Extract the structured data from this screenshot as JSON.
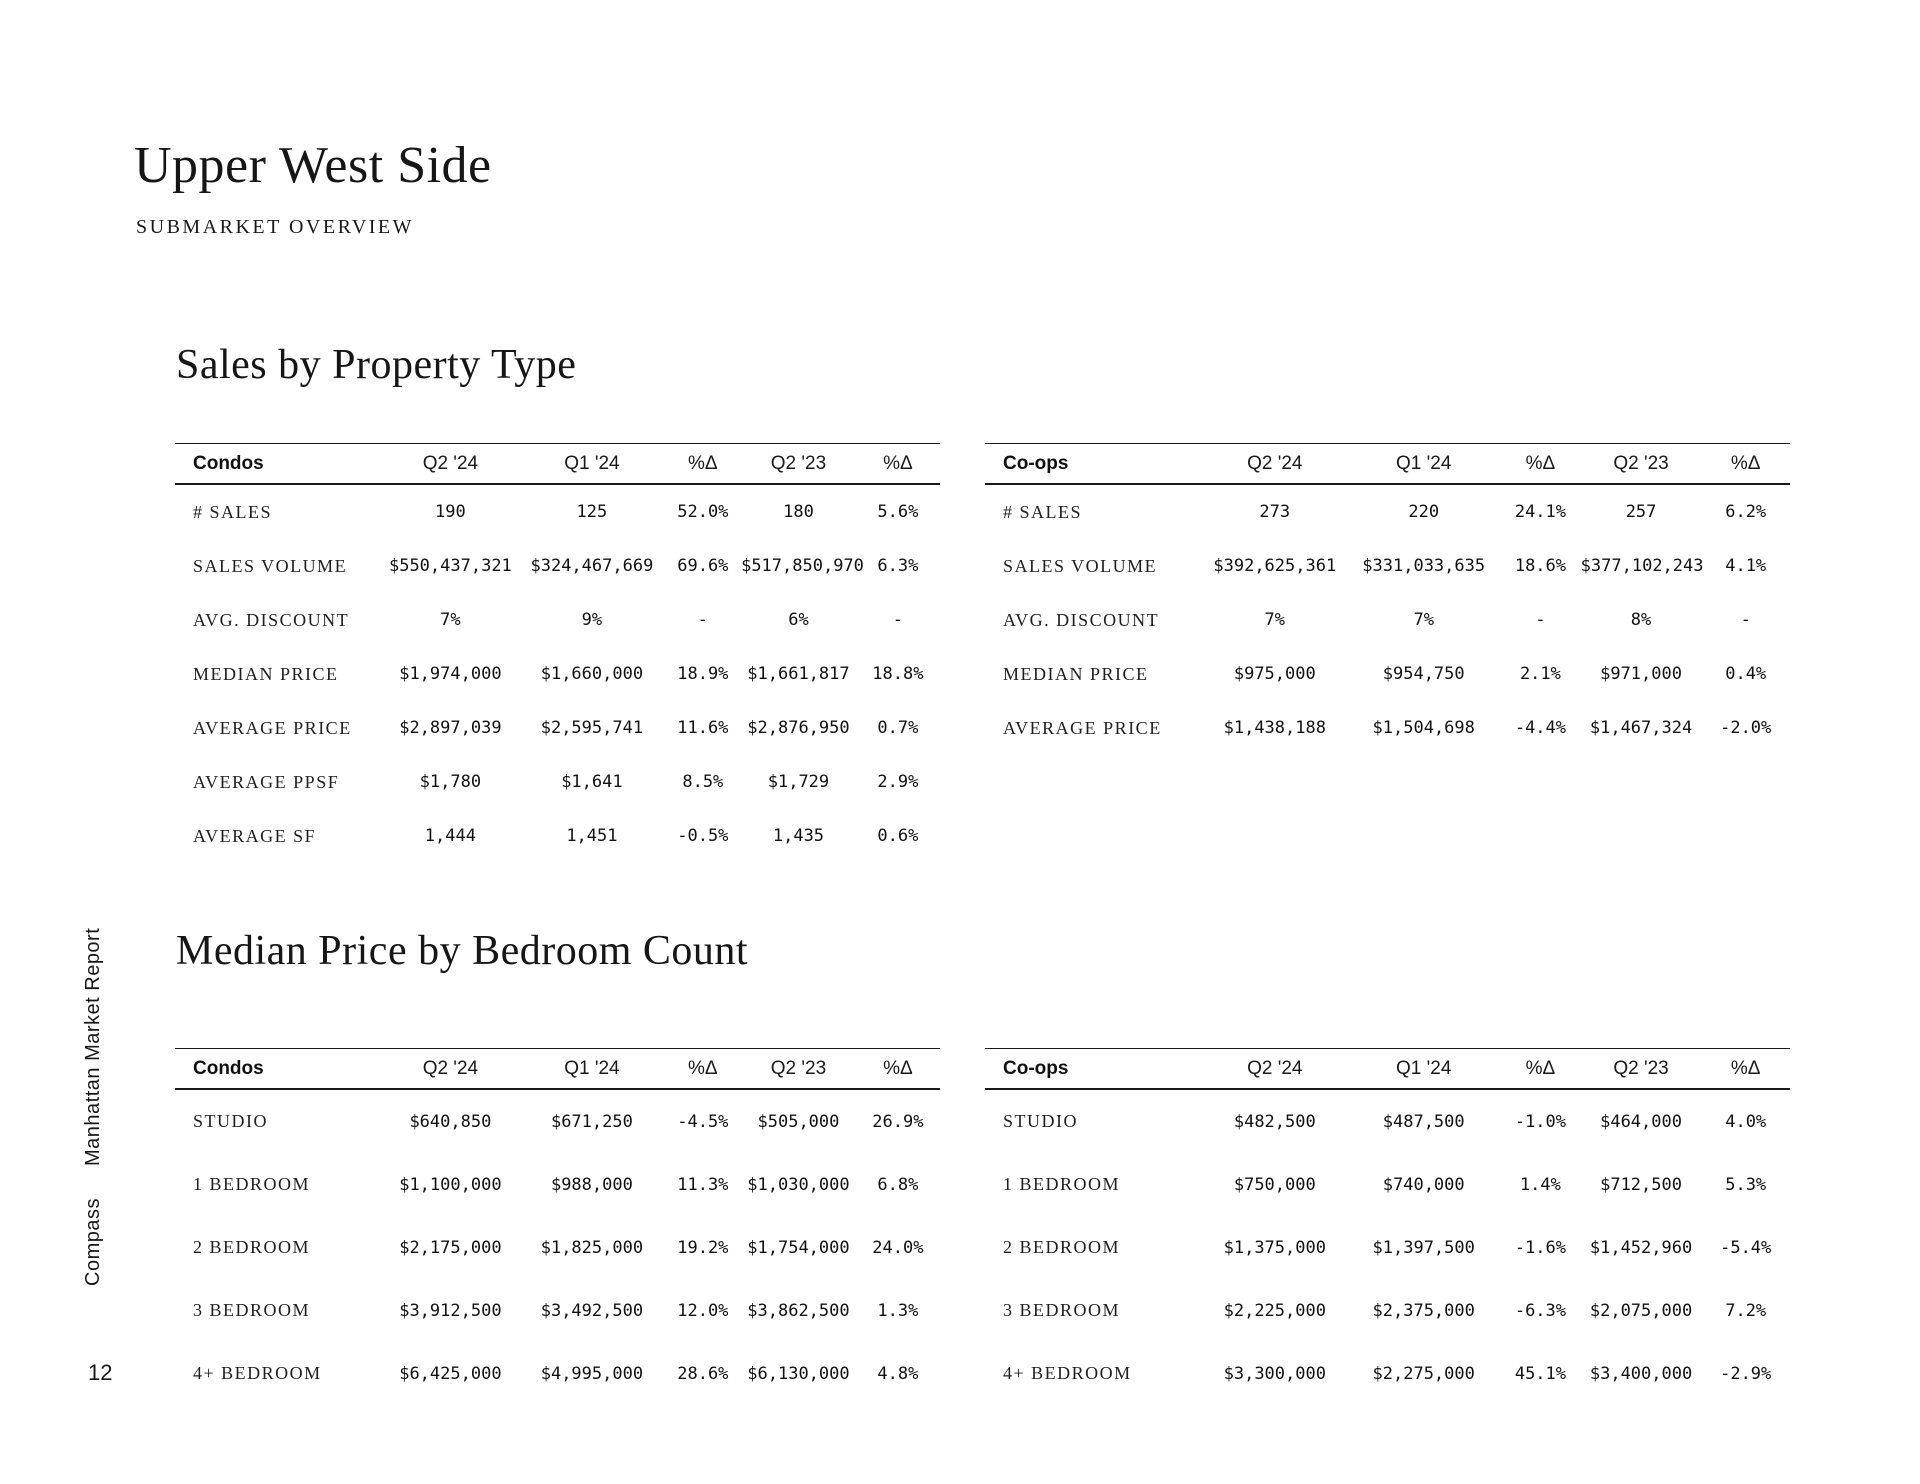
{
  "page": {
    "title": "Upper West Side",
    "subtitle": "SUBMARKET OVERVIEW",
    "sidebar_brand": "Compass",
    "sidebar_report": "Manhattan Market Report",
    "page_number": "12",
    "ink_color": "#1a1a1a",
    "background_color": "#ffffff"
  },
  "sections": [
    {
      "heading": "Sales by Property Type",
      "tables": [
        {
          "label": "Condos",
          "columns": [
            "Q2 '24",
            "Q1 '24",
            "%Δ",
            "Q2 '23",
            "%Δ"
          ],
          "rows": [
            {
              "label": "# SALES",
              "values": [
                "190",
                "125",
                "52.0%",
                "180",
                "5.6%"
              ]
            },
            {
              "label": "SALES VOLUME",
              "values": [
                "$550,437,321",
                "$324,467,669",
                "69.6%",
                "$517,850,970",
                "6.3%"
              ]
            },
            {
              "label": "AVG. DISCOUNT",
              "values": [
                "7%",
                "9%",
                "-",
                "6%",
                "-"
              ]
            },
            {
              "label": "MEDIAN PRICE",
              "values": [
                "$1,974,000",
                "$1,660,000",
                "18.9%",
                "$1,661,817",
                "18.8%"
              ]
            },
            {
              "label": "AVERAGE PRICE",
              "values": [
                "$2,897,039",
                "$2,595,741",
                "11.6%",
                "$2,876,950",
                "0.7%"
              ]
            },
            {
              "label": "AVERAGE PPSF",
              "values": [
                "$1,780",
                "$1,641",
                "8.5%",
                "$1,729",
                "2.9%"
              ]
            },
            {
              "label": "AVERAGE SF",
              "values": [
                "1,444",
                "1,451",
                "-0.5%",
                "1,435",
                "0.6%"
              ]
            }
          ]
        },
        {
          "label": "Co-ops",
          "columns": [
            "Q2 '24",
            "Q1 '24",
            "%Δ",
            "Q2 '23",
            "%Δ"
          ],
          "rows": [
            {
              "label": "# SALES",
              "values": [
                "273",
                "220",
                "24.1%",
                "257",
                "6.2%"
              ]
            },
            {
              "label": "SALES VOLUME",
              "values": [
                "$392,625,361",
                "$331,033,635",
                "18.6%",
                "$377,102,243",
                "4.1%"
              ]
            },
            {
              "label": "AVG. DISCOUNT",
              "values": [
                "7%",
                "7%",
                "-",
                "8%",
                "-"
              ]
            },
            {
              "label": "MEDIAN PRICE",
              "values": [
                "$975,000",
                "$954,750",
                "2.1%",
                "$971,000",
                "0.4%"
              ]
            },
            {
              "label": "AVERAGE PRICE",
              "values": [
                "$1,438,188",
                "$1,504,698",
                "-4.4%",
                "$1,467,324",
                "-2.0%"
              ]
            }
          ]
        }
      ]
    },
    {
      "heading": "Median Price by Bedroom Count",
      "tables": [
        {
          "label": "Condos",
          "columns": [
            "Q2 '24",
            "Q1 '24",
            "%Δ",
            "Q2 '23",
            "%Δ"
          ],
          "rows": [
            {
              "label": "STUDIO",
              "values": [
                "$640,850",
                "$671,250",
                "-4.5%",
                "$505,000",
                "26.9%"
              ]
            },
            {
              "label": "1 BEDROOM",
              "values": [
                "$1,100,000",
                "$988,000",
                "11.3%",
                "$1,030,000",
                "6.8%"
              ]
            },
            {
              "label": "2 BEDROOM",
              "values": [
                "$2,175,000",
                "$1,825,000",
                "19.2%",
                "$1,754,000",
                "24.0%"
              ]
            },
            {
              "label": "3 BEDROOM",
              "values": [
                "$3,912,500",
                "$3,492,500",
                "12.0%",
                "$3,862,500",
                "1.3%"
              ]
            },
            {
              "label": "4+ BEDROOM",
              "values": [
                "$6,425,000",
                "$4,995,000",
                "28.6%",
                "$6,130,000",
                "4.8%"
              ]
            }
          ]
        },
        {
          "label": "Co-ops",
          "columns": [
            "Q2 '24",
            "Q1 '24",
            "%Δ",
            "Q2 '23",
            "%Δ"
          ],
          "rows": [
            {
              "label": "STUDIO",
              "values": [
                "$482,500",
                "$487,500",
                "-1.0%",
                "$464,000",
                "4.0%"
              ]
            },
            {
              "label": "1 BEDROOM",
              "values": [
                "$750,000",
                "$740,000",
                "1.4%",
                "$712,500",
                "5.3%"
              ]
            },
            {
              "label": "2 BEDROOM",
              "values": [
                "$1,375,000",
                "$1,397,500",
                "-1.6%",
                "$1,452,960",
                "-5.4%"
              ]
            },
            {
              "label": "3 BEDROOM",
              "values": [
                "$2,225,000",
                "$2,375,000",
                "-6.3%",
                "$2,075,000",
                "7.2%"
              ]
            },
            {
              "label": "4+ BEDROOM",
              "values": [
                "$3,300,000",
                "$2,275,000",
                "45.1%",
                "$3,400,000",
                "-2.9%"
              ]
            }
          ]
        }
      ]
    }
  ]
}
